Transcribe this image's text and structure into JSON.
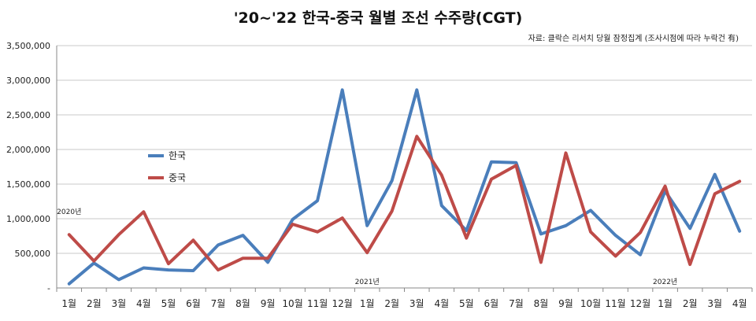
{
  "title": "'20~'22 한국-중국 월별 조선 수주량(CGT)",
  "source": "자료: 클락슨 리서치 당월 잠정집계 (조사시점에 따라 누락건 有)",
  "chart_data": {
    "type": "line",
    "title": "'20~'22 한국-중국 월별 조선 수주량(CGT)",
    "categories": [
      "1월",
      "2월",
      "3월",
      "4월",
      "5월",
      "6월",
      "7월",
      "8월",
      "9월",
      "10월",
      "11월",
      "12월",
      "1월",
      "2월",
      "3월",
      "4월",
      "5월",
      "6월",
      "7월",
      "8월",
      "9월",
      "10월",
      "11월",
      "12월",
      "1월",
      "2월",
      "3월",
      "4월"
    ],
    "year_labels": [
      {
        "text": "2020년",
        "index": 0
      },
      {
        "text": "2021년",
        "index": 12
      },
      {
        "text": "2022년",
        "index": 24
      }
    ],
    "y_ticks": [
      "-",
      "500,000",
      "1,000,000",
      "1,500,000",
      "2,000,000",
      "2,500,000",
      "3,000,000",
      "3,500,000"
    ],
    "ylim": [
      0,
      3500000
    ],
    "grid": true,
    "legend_position": "left-middle",
    "series": [
      {
        "name": "한국",
        "color": "#4a7ebb",
        "values": [
          60000,
          360000,
          120000,
          290000,
          260000,
          250000,
          620000,
          760000,
          370000,
          990000,
          1260000,
          2860000,
          900000,
          1550000,
          2860000,
          1190000,
          830000,
          1820000,
          1810000,
          780000,
          900000,
          1120000,
          760000,
          480000,
          1400000,
          860000,
          1640000,
          820000
        ]
      },
      {
        "name": "중국",
        "color": "#be4b48",
        "values": [
          770000,
          390000,
          770000,
          1100000,
          350000,
          690000,
          260000,
          430000,
          430000,
          920000,
          810000,
          1010000,
          510000,
          1110000,
          2190000,
          1630000,
          720000,
          1570000,
          1770000,
          370000,
          1950000,
          810000,
          460000,
          800000,
          1470000,
          340000,
          1360000,
          1540000
        ]
      }
    ]
  }
}
